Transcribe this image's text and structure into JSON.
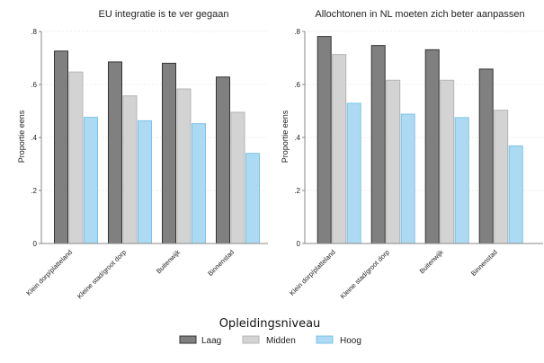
{
  "chart_data": [
    {
      "type": "bar",
      "title": "EU integratie is te ver gegaan",
      "xlabel": "",
      "ylabel": "Proportie eens",
      "ylim": [
        0,
        0.8
      ],
      "yticks": [
        0,
        0.2,
        0.4,
        0.6,
        0.8
      ],
      "ytick_labels": [
        "0",
        ".2",
        ".4",
        ".6",
        ".8"
      ],
      "grid": true,
      "categories": [
        "Klein dorp/platteland",
        "Kleine stad/groot dorp",
        "Buitenwijk",
        "Binnenstad"
      ],
      "series": [
        {
          "name": "Laag",
          "values": [
            0.726,
            0.685,
            0.68,
            0.628
          ]
        },
        {
          "name": "Midden",
          "values": [
            0.647,
            0.557,
            0.583,
            0.495
          ]
        },
        {
          "name": "Hoog",
          "values": [
            0.476,
            0.463,
            0.452,
            0.34
          ]
        }
      ]
    },
    {
      "type": "bar",
      "title": "Allochtonen in NL moeten zich beter aanpassen",
      "xlabel": "",
      "ylabel": "Proportie eens",
      "ylim": [
        0,
        0.8
      ],
      "yticks": [
        0,
        0.2,
        0.4,
        0.6,
        0.8
      ],
      "ytick_labels": [
        "0",
        ".2",
        ".4",
        ".6",
        ".8"
      ],
      "grid": true,
      "categories": [
        "Klein dorp/platteland",
        "Kleine stad/groot dorp",
        "Buitenwijk",
        "Binnenstad"
      ],
      "series": [
        {
          "name": "Laag",
          "values": [
            0.781,
            0.747,
            0.731,
            0.658
          ]
        },
        {
          "name": "Midden",
          "values": [
            0.713,
            0.616,
            0.616,
            0.503
          ]
        },
        {
          "name": "Hoog",
          "values": [
            0.529,
            0.488,
            0.475,
            0.368
          ]
        }
      ]
    }
  ],
  "legend": {
    "title": "Opleidingsniveau",
    "placement": "bottom-center",
    "items": [
      {
        "label": "Laag",
        "fill": "#808080",
        "stroke": "#333333"
      },
      {
        "label": "Midden",
        "fill": "#d3d3d3",
        "stroke": "#b5b5b5"
      },
      {
        "label": "Hoog",
        "fill": "#acdaf3",
        "stroke": "#7cc3ea"
      }
    ]
  }
}
